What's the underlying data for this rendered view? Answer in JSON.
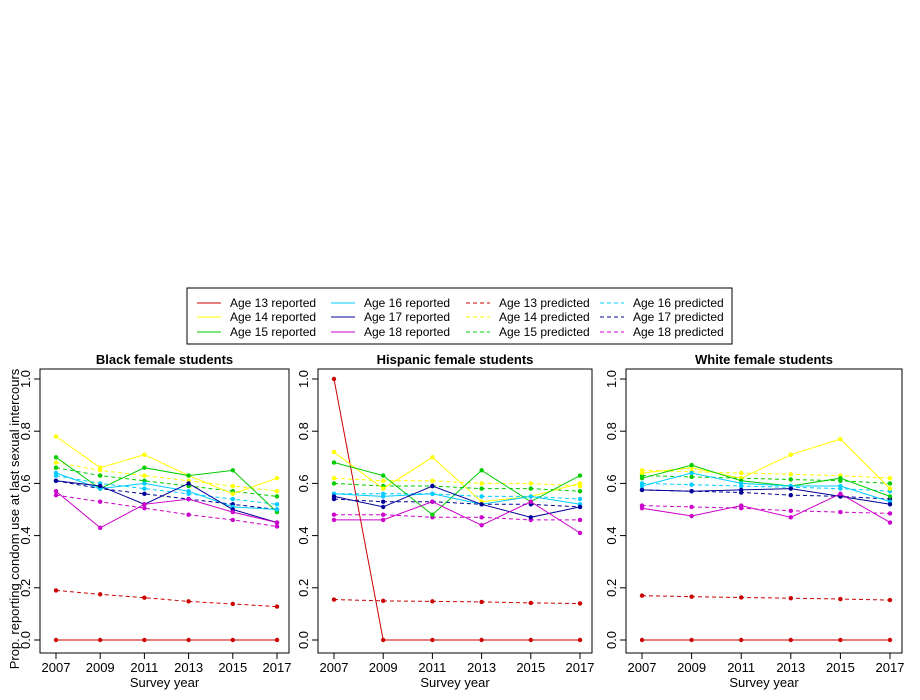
{
  "y_axis_label": "Prop. reporting condom use at last sexual intercours",
  "legend": {
    "entries": [
      {
        "label": "Age 13 reported",
        "color": "#CC0000",
        "dashed": false
      },
      {
        "label": "Age 14 reported",
        "color": "#FFFF00",
        "dashed": false
      },
      {
        "label": "Age 15 reported",
        "color": "#00CC00",
        "dashed": false
      },
      {
        "label": "Age 16 reported",
        "color": "#00CCFF",
        "dashed": false
      },
      {
        "label": "Age 17 reported",
        "color": "#000099",
        "dashed": false
      },
      {
        "label": "Age 18 reported",
        "color": "#CC00CC",
        "dashed": false
      },
      {
        "label": "Age 13 predicted",
        "color": "#CC0000",
        "dashed": true
      },
      {
        "label": "Age 14 predicted",
        "color": "#FFFF00",
        "dashed": true
      },
      {
        "label": "Age 15 predicted",
        "color": "#00CC00",
        "dashed": true
      },
      {
        "label": "Age 16 predicted",
        "color": "#00CCFF",
        "dashed": true
      },
      {
        "label": "Age 17 predicted",
        "color": "#000099",
        "dashed": true
      },
      {
        "label": "Age 18 predicted",
        "color": "#CC00CC",
        "dashed": true
      }
    ]
  },
  "chart_data": [
    {
      "type": "line",
      "title": "Black female students",
      "xlabel": "Survey year",
      "ylabel": "Prop. reporting condom use at last sexual intercours",
      "x": [
        2007,
        2009,
        2011,
        2013,
        2015,
        2017
      ],
      "xlim": [
        2007,
        2017
      ],
      "ylim": [
        0,
        1
      ],
      "yticks": [
        0.0,
        0.2,
        0.4,
        0.6,
        0.8,
        1.0
      ],
      "grid": false,
      "series": [
        {
          "name": "Age 13 reported",
          "color": "#CC0000",
          "dashed": false,
          "values": [
            0.0,
            0.0,
            0.0,
            0.0,
            0.0,
            0.0
          ]
        },
        {
          "name": "Age 14 reported",
          "color": "#FFFF00",
          "dashed": false,
          "values": [
            0.78,
            0.66,
            0.71,
            0.63,
            0.56,
            0.62
          ]
        },
        {
          "name": "Age 15 reported",
          "color": "#00CC00",
          "dashed": false,
          "values": [
            0.7,
            0.58,
            0.66,
            0.63,
            0.65,
            0.49
          ]
        },
        {
          "name": "Age 16 reported",
          "color": "#00CCFF",
          "dashed": false,
          "values": [
            0.64,
            0.58,
            0.6,
            0.57,
            0.51,
            0.5
          ]
        },
        {
          "name": "Age 17 reported",
          "color": "#000099",
          "dashed": false,
          "values": [
            0.61,
            0.59,
            0.52,
            0.6,
            0.5,
            0.45
          ]
        },
        {
          "name": "Age 18 reported",
          "color": "#CC00CC",
          "dashed": false,
          "values": [
            0.57,
            0.43,
            0.52,
            0.54,
            0.49,
            0.45
          ]
        },
        {
          "name": "Age 13 predicted",
          "color": "#CC0000",
          "dashed": true,
          "values": [
            0.19,
            0.175,
            0.162,
            0.148,
            0.138,
            0.128
          ]
        },
        {
          "name": "Age 14 predicted",
          "color": "#FFFF00",
          "dashed": true,
          "values": [
            0.68,
            0.65,
            0.63,
            0.61,
            0.59,
            0.57
          ]
        },
        {
          "name": "Age 15 predicted",
          "color": "#00CC00",
          "dashed": true,
          "values": [
            0.66,
            0.63,
            0.61,
            0.59,
            0.57,
            0.55
          ]
        },
        {
          "name": "Age 16 predicted",
          "color": "#00CCFF",
          "dashed": true,
          "values": [
            0.63,
            0.6,
            0.58,
            0.56,
            0.54,
            0.52
          ]
        },
        {
          "name": "Age 17 predicted",
          "color": "#000099",
          "dashed": true,
          "values": [
            0.61,
            0.58,
            0.56,
            0.54,
            0.52,
            0.5
          ]
        },
        {
          "name": "Age 18 predicted",
          "color": "#CC00CC",
          "dashed": true,
          "values": [
            0.555,
            0.53,
            0.505,
            0.48,
            0.46,
            0.435
          ]
        }
      ]
    },
    {
      "type": "line",
      "title": "Hispanic female students",
      "xlabel": "Survey year",
      "ylabel": "",
      "x": [
        2007,
        2009,
        2011,
        2013,
        2015,
        2017
      ],
      "xlim": [
        2007,
        2017
      ],
      "ylim": [
        0,
        1
      ],
      "yticks": [
        0.0,
        0.2,
        0.4,
        0.6,
        0.8,
        1.0
      ],
      "grid": false,
      "series": [
        {
          "name": "Age 13 reported",
          "color": "#CC0000",
          "dashed": false,
          "values": [
            1.0,
            0.0,
            0.0,
            0.0,
            0.0,
            0.0
          ]
        },
        {
          "name": "Age 14 reported",
          "color": "#FFFF00",
          "dashed": false,
          "values": [
            0.72,
            0.58,
            0.7,
            0.53,
            0.55,
            0.6
          ]
        },
        {
          "name": "Age 15 reported",
          "color": "#00CC00",
          "dashed": false,
          "values": [
            0.68,
            0.63,
            0.48,
            0.65,
            0.53,
            0.63
          ]
        },
        {
          "name": "Age 16 reported",
          "color": "#00CCFF",
          "dashed": false,
          "values": [
            0.56,
            0.55,
            0.56,
            0.52,
            0.55,
            0.52
          ]
        },
        {
          "name": "Age 17 reported",
          "color": "#000099",
          "dashed": false,
          "values": [
            0.55,
            0.51,
            0.59,
            0.52,
            0.47,
            0.51
          ]
        },
        {
          "name": "Age 18 reported",
          "color": "#CC00CC",
          "dashed": false,
          "values": [
            0.46,
            0.46,
            0.53,
            0.44,
            0.53,
            0.41
          ]
        },
        {
          "name": "Age 13 predicted",
          "color": "#CC0000",
          "dashed": true,
          "values": [
            0.155,
            0.15,
            0.148,
            0.146,
            0.142,
            0.14
          ]
        },
        {
          "name": "Age 14 predicted",
          "color": "#FFFF00",
          "dashed": true,
          "values": [
            0.62,
            0.61,
            0.61,
            0.6,
            0.6,
            0.59
          ]
        },
        {
          "name": "Age 15 predicted",
          "color": "#00CC00",
          "dashed": true,
          "values": [
            0.6,
            0.59,
            0.59,
            0.58,
            0.58,
            0.57
          ]
        },
        {
          "name": "Age 16 predicted",
          "color": "#00CCFF",
          "dashed": true,
          "values": [
            0.56,
            0.56,
            0.56,
            0.55,
            0.55,
            0.54
          ]
        },
        {
          "name": "Age 17 predicted",
          "color": "#000099",
          "dashed": true,
          "values": [
            0.54,
            0.53,
            0.53,
            0.52,
            0.52,
            0.51
          ]
        },
        {
          "name": "Age 18 predicted",
          "color": "#CC00CC",
          "dashed": true,
          "values": [
            0.48,
            0.48,
            0.47,
            0.47,
            0.46,
            0.46
          ]
        }
      ]
    },
    {
      "type": "line",
      "title": "White female students",
      "xlabel": "Survey year",
      "ylabel": "",
      "x": [
        2007,
        2009,
        2011,
        2013,
        2015,
        2017
      ],
      "xlim": [
        2007,
        2017
      ],
      "ylim": [
        0,
        1
      ],
      "yticks": [
        0.0,
        0.2,
        0.4,
        0.6,
        0.8,
        1.0
      ],
      "grid": false,
      "series": [
        {
          "name": "Age 13 reported",
          "color": "#CC0000",
          "dashed": false,
          "values": [
            0.0,
            0.0,
            0.0,
            0.0,
            0.0,
            0.0
          ]
        },
        {
          "name": "Age 14 reported",
          "color": "#FFFF00",
          "dashed": false,
          "values": [
            0.64,
            0.66,
            0.62,
            0.71,
            0.77,
            0.58
          ]
        },
        {
          "name": "Age 15 reported",
          "color": "#00CC00",
          "dashed": false,
          "values": [
            0.62,
            0.67,
            0.61,
            0.59,
            0.62,
            0.55
          ]
        },
        {
          "name": "Age 16 reported",
          "color": "#00CCFF",
          "dashed": false,
          "values": [
            0.59,
            0.64,
            0.6,
            0.59,
            0.59,
            0.53
          ]
        },
        {
          "name": "Age 17 reported",
          "color": "#000099",
          "dashed": false,
          "values": [
            0.575,
            0.57,
            0.575,
            0.58,
            0.55,
            0.52
          ]
        },
        {
          "name": "Age 18 reported",
          "color": "#CC00CC",
          "dashed": false,
          "values": [
            0.505,
            0.475,
            0.515,
            0.47,
            0.56,
            0.45
          ]
        },
        {
          "name": "Age 13 predicted",
          "color": "#CC0000",
          "dashed": true,
          "values": [
            0.17,
            0.166,
            0.163,
            0.16,
            0.157,
            0.153
          ]
        },
        {
          "name": "Age 14 predicted",
          "color": "#FFFF00",
          "dashed": true,
          "values": [
            0.65,
            0.645,
            0.64,
            0.635,
            0.63,
            0.62
          ]
        },
        {
          "name": "Age 15 predicted",
          "color": "#00CC00",
          "dashed": true,
          "values": [
            0.63,
            0.625,
            0.62,
            0.615,
            0.61,
            0.6
          ]
        },
        {
          "name": "Age 16 predicted",
          "color": "#00CCFF",
          "dashed": true,
          "values": [
            0.6,
            0.595,
            0.59,
            0.585,
            0.58,
            0.57
          ]
        },
        {
          "name": "Age 17 predicted",
          "color": "#000099",
          "dashed": true,
          "values": [
            0.575,
            0.57,
            0.565,
            0.555,
            0.55,
            0.54
          ]
        },
        {
          "name": "Age 18 predicted",
          "color": "#CC00CC",
          "dashed": true,
          "values": [
            0.515,
            0.51,
            0.505,
            0.495,
            0.49,
            0.485
          ]
        }
      ]
    }
  ]
}
